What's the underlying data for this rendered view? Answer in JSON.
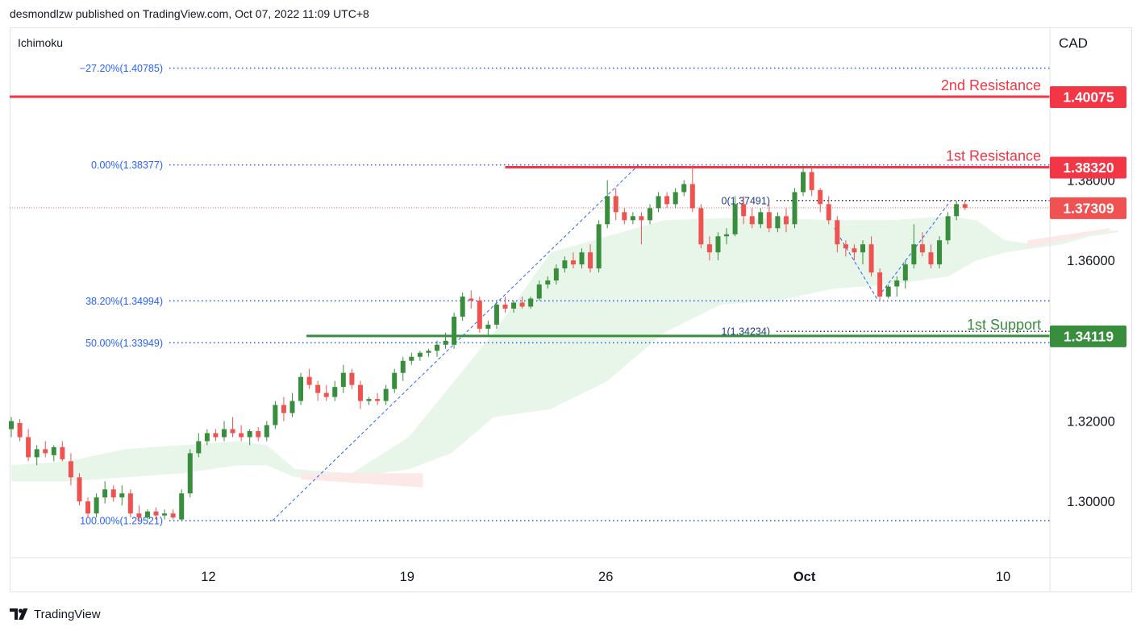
{
  "header": {
    "published": "desmondlzw published on TradingView.com, Oct 07, 2022 11:09 UTC+8"
  },
  "footer": {
    "brand": "TradingView"
  },
  "colors": {
    "up": "#388e3c",
    "down": "#ef5350",
    "resistance": "#f23645",
    "support": "#388e3c",
    "fib": "#2962ff",
    "cloud_up": "#e8f5e9",
    "cloud_down": "#fde8e8"
  },
  "icons": {
    "logo": "tradingview-logo-icon"
  },
  "chart_data": {
    "type": "candlestick",
    "indicator": "Ichimoku",
    "currency": "CAD",
    "ylim": [
      1.286,
      1.418
    ],
    "x_tick_labels": [
      {
        "label": "12",
        "day": 12
      },
      {
        "label": "19",
        "day": 19
      },
      {
        "label": "26",
        "day": 26
      },
      {
        "label": "Oct",
        "day": 33
      },
      {
        "label": "10",
        "day": 40
      }
    ],
    "y_tick_labels": [
      {
        "label": "1.30000",
        "value": 1.3
      },
      {
        "label": "1.32000",
        "value": 1.32
      },
      {
        "label": "1.36000",
        "value": 1.36
      },
      {
        "label": "1.38000",
        "value": 1.38
      }
    ],
    "price_badges": [
      {
        "label": "1.40075",
        "value": 1.40075,
        "kind": "resistance"
      },
      {
        "label": "1.38320",
        "value": 1.3832,
        "kind": "resistance"
      },
      {
        "label": "1.37309",
        "value": 1.37309,
        "kind": "last"
      },
      {
        "label": "1.34119",
        "value": 1.34119,
        "kind": "support"
      }
    ],
    "levels": [
      {
        "name": "2nd Resistance",
        "value": 1.40075,
        "kind": "resistance",
        "day_start": 5.0
      },
      {
        "name": "1st Resistance",
        "value": 1.3832,
        "kind": "resistance",
        "day_start": 22.4
      },
      {
        "name": "1st Support",
        "value": 1.34119,
        "kind": "support",
        "day_start": 15.4
      }
    ],
    "fib_levels": [
      {
        "label": "−27.20%(1.40785)",
        "value": 1.40785
      },
      {
        "label": "0.00%(1.38377)",
        "value": 1.38377
      },
      {
        "label": "38.20%(1.34994)",
        "value": 1.34994
      },
      {
        "label": "50.00%(1.33949)",
        "value": 1.33949
      },
      {
        "label": "100.00%(1.29521)",
        "value": 1.29521
      }
    ],
    "fib_trend": [
      {
        "day": 14.2,
        "value": 1.29521
      },
      {
        "day": 27.1,
        "value": 1.38377
      }
    ],
    "fib_ext_levels": [
      {
        "label": "0(1.37491)",
        "value": 1.37491
      },
      {
        "label": "1(1.34234)",
        "value": 1.34234
      }
    ],
    "fib_ext_trend": [
      {
        "day": 34.0,
        "value": 1.368
      },
      {
        "day": 35.5,
        "value": 1.3505
      },
      {
        "day": 38.1,
        "value": 1.37491
      }
    ],
    "last_price": 1.37309,
    "candles": [
      {
        "day": 5.0,
        "o": 1.318,
        "h": 1.321,
        "l": 1.316,
        "c": 1.32
      },
      {
        "day": 5.3,
        "o": 1.3195,
        "h": 1.3205,
        "l": 1.315,
        "c": 1.316
      },
      {
        "day": 5.6,
        "o": 1.316,
        "h": 1.318,
        "l": 1.31,
        "c": 1.311
      },
      {
        "day": 5.9,
        "o": 1.311,
        "h": 1.314,
        "l": 1.309,
        "c": 1.313
      },
      {
        "day": 6.2,
        "o": 1.313,
        "h": 1.315,
        "l": 1.311,
        "c": 1.312
      },
      {
        "day": 6.5,
        "o": 1.3115,
        "h": 1.314,
        "l": 1.31,
        "c": 1.3135
      },
      {
        "day": 6.8,
        "o": 1.3135,
        "h": 1.315,
        "l": 1.31,
        "c": 1.3105
      },
      {
        "day": 7.1,
        "o": 1.31,
        "h": 1.312,
        "l": 1.304,
        "c": 1.306
      },
      {
        "day": 7.4,
        "o": 1.306,
        "h": 1.307,
        "l": 1.299,
        "c": 1.3
      },
      {
        "day": 7.7,
        "o": 1.3,
        "h": 1.301,
        "l": 1.296,
        "c": 1.297
      },
      {
        "day": 8.0,
        "o": 1.297,
        "h": 1.302,
        "l": 1.296,
        "c": 1.301
      },
      {
        "day": 8.3,
        "o": 1.301,
        "h": 1.305,
        "l": 1.2995,
        "c": 1.303
      },
      {
        "day": 8.6,
        "o": 1.303,
        "h": 1.304,
        "l": 1.3,
        "c": 1.301
      },
      {
        "day": 8.9,
        "o": 1.301,
        "h": 1.304,
        "l": 1.299,
        "c": 1.302
      },
      {
        "day": 9.2,
        "o": 1.302,
        "h": 1.303,
        "l": 1.296,
        "c": 1.297
      },
      {
        "day": 9.5,
        "o": 1.297,
        "h": 1.299,
        "l": 1.295,
        "c": 1.296
      },
      {
        "day": 9.8,
        "o": 1.296,
        "h": 1.298,
        "l": 1.2955,
        "c": 1.2975
      },
      {
        "day": 10.1,
        "o": 1.2975,
        "h": 1.2985,
        "l": 1.2955,
        "c": 1.2965
      },
      {
        "day": 10.4,
        "o": 1.2965,
        "h": 1.298,
        "l": 1.2955,
        "c": 1.297
      },
      {
        "day": 10.7,
        "o": 1.297,
        "h": 1.298,
        "l": 1.2955,
        "c": 1.296
      },
      {
        "day": 11.0,
        "o": 1.2955,
        "h": 1.303,
        "l": 1.2952,
        "c": 1.302
      },
      {
        "day": 11.3,
        "o": 1.302,
        "h": 1.313,
        "l": 1.301,
        "c": 1.312
      },
      {
        "day": 11.6,
        "o": 1.312,
        "h": 1.317,
        "l": 1.311,
        "c": 1.315
      },
      {
        "day": 11.9,
        "o": 1.315,
        "h": 1.318,
        "l": 1.314,
        "c": 1.317
      },
      {
        "day": 12.2,
        "o": 1.317,
        "h": 1.318,
        "l": 1.315,
        "c": 1.316
      },
      {
        "day": 12.5,
        "o": 1.316,
        "h": 1.32,
        "l": 1.315,
        "c": 1.318
      },
      {
        "day": 12.8,
        "o": 1.318,
        "h": 1.321,
        "l": 1.316,
        "c": 1.317
      },
      {
        "day": 13.1,
        "o": 1.317,
        "h": 1.319,
        "l": 1.315,
        "c": 1.316
      },
      {
        "day": 13.4,
        "o": 1.316,
        "h": 1.318,
        "l": 1.314,
        "c": 1.3175
      },
      {
        "day": 13.7,
        "o": 1.3175,
        "h": 1.3185,
        "l": 1.315,
        "c": 1.316
      },
      {
        "day": 14.0,
        "o": 1.316,
        "h": 1.32,
        "l": 1.315,
        "c": 1.319
      },
      {
        "day": 14.3,
        "o": 1.319,
        "h": 1.325,
        "l": 1.318,
        "c": 1.324
      },
      {
        "day": 14.6,
        "o": 1.324,
        "h": 1.326,
        "l": 1.32,
        "c": 1.322
      },
      {
        "day": 14.9,
        "o": 1.322,
        "h": 1.327,
        "l": 1.321,
        "c": 1.325
      },
      {
        "day": 15.2,
        "o": 1.325,
        "h": 1.332,
        "l": 1.324,
        "c": 1.331
      },
      {
        "day": 15.5,
        "o": 1.331,
        "h": 1.333,
        "l": 1.328,
        "c": 1.329
      },
      {
        "day": 15.8,
        "o": 1.329,
        "h": 1.33,
        "l": 1.325,
        "c": 1.327
      },
      {
        "day": 16.1,
        "o": 1.327,
        "h": 1.329,
        "l": 1.325,
        "c": 1.326
      },
      {
        "day": 16.4,
        "o": 1.326,
        "h": 1.33,
        "l": 1.325,
        "c": 1.3285
      },
      {
        "day": 16.7,
        "o": 1.3285,
        "h": 1.334,
        "l": 1.327,
        "c": 1.332
      },
      {
        "day": 17.0,
        "o": 1.332,
        "h": 1.333,
        "l": 1.328,
        "c": 1.329
      },
      {
        "day": 17.3,
        "o": 1.329,
        "h": 1.33,
        "l": 1.323,
        "c": 1.325
      },
      {
        "day": 17.6,
        "o": 1.325,
        "h": 1.326,
        "l": 1.324,
        "c": 1.3255
      },
      {
        "day": 17.9,
        "o": 1.3255,
        "h": 1.327,
        "l": 1.324,
        "c": 1.325
      },
      {
        "day": 18.2,
        "o": 1.325,
        "h": 1.329,
        "l": 1.324,
        "c": 1.328
      },
      {
        "day": 18.5,
        "o": 1.328,
        "h": 1.333,
        "l": 1.327,
        "c": 1.332
      },
      {
        "day": 18.8,
        "o": 1.332,
        "h": 1.336,
        "l": 1.33,
        "c": 1.335
      },
      {
        "day": 19.1,
        "o": 1.335,
        "h": 1.337,
        "l": 1.334,
        "c": 1.336
      },
      {
        "day": 19.4,
        "o": 1.336,
        "h": 1.3375,
        "l": 1.335,
        "c": 1.337
      },
      {
        "day": 19.7,
        "o": 1.337,
        "h": 1.338,
        "l": 1.336,
        "c": 1.3375
      },
      {
        "day": 20.0,
        "o": 1.3375,
        "h": 1.34,
        "l": 1.336,
        "c": 1.339
      },
      {
        "day": 20.3,
        "o": 1.339,
        "h": 1.342,
        "l": 1.338,
        "c": 1.34
      },
      {
        "day": 20.6,
        "o": 1.339,
        "h": 1.347,
        "l": 1.338,
        "c": 1.346
      },
      {
        "day": 20.9,
        "o": 1.346,
        "h": 1.352,
        "l": 1.345,
        "c": 1.351
      },
      {
        "day": 21.2,
        "o": 1.3505,
        "h": 1.3525,
        "l": 1.348,
        "c": 1.35
      },
      {
        "day": 21.5,
        "o": 1.35,
        "h": 1.351,
        "l": 1.342,
        "c": 1.343
      },
      {
        "day": 21.8,
        "o": 1.343,
        "h": 1.345,
        "l": 1.341,
        "c": 1.344
      },
      {
        "day": 22.1,
        "o": 1.344,
        "h": 1.35,
        "l": 1.343,
        "c": 1.349
      },
      {
        "day": 22.4,
        "o": 1.349,
        "h": 1.351,
        "l": 1.347,
        "c": 1.348
      },
      {
        "day": 22.7,
        "o": 1.348,
        "h": 1.35,
        "l": 1.347,
        "c": 1.3495
      },
      {
        "day": 23.0,
        "o": 1.3495,
        "h": 1.351,
        "l": 1.348,
        "c": 1.3485
      },
      {
        "day": 23.3,
        "o": 1.3485,
        "h": 1.351,
        "l": 1.348,
        "c": 1.3505
      },
      {
        "day": 23.6,
        "o": 1.3505,
        "h": 1.355,
        "l": 1.35,
        "c": 1.354
      },
      {
        "day": 23.9,
        "o": 1.354,
        "h": 1.356,
        "l": 1.353,
        "c": 1.355
      },
      {
        "day": 24.2,
        "o": 1.355,
        "h": 1.359,
        "l": 1.354,
        "c": 1.358
      },
      {
        "day": 24.5,
        "o": 1.358,
        "h": 1.361,
        "l": 1.357,
        "c": 1.36
      },
      {
        "day": 24.8,
        "o": 1.36,
        "h": 1.362,
        "l": 1.358,
        "c": 1.359
      },
      {
        "day": 25.1,
        "o": 1.359,
        "h": 1.363,
        "l": 1.358,
        "c": 1.362
      },
      {
        "day": 25.4,
        "o": 1.362,
        "h": 1.364,
        "l": 1.357,
        "c": 1.358
      },
      {
        "day": 25.7,
        "o": 1.358,
        "h": 1.37,
        "l": 1.357,
        "c": 1.369
      },
      {
        "day": 26.0,
        "o": 1.369,
        "h": 1.38,
        "l": 1.368,
        "c": 1.376
      },
      {
        "day": 26.3,
        "o": 1.376,
        "h": 1.378,
        "l": 1.37,
        "c": 1.372
      },
      {
        "day": 26.6,
        "o": 1.372,
        "h": 1.373,
        "l": 1.369,
        "c": 1.37
      },
      {
        "day": 26.9,
        "o": 1.37,
        "h": 1.372,
        "l": 1.369,
        "c": 1.371
      },
      {
        "day": 27.2,
        "o": 1.371,
        "h": 1.372,
        "l": 1.364,
        "c": 1.37
      },
      {
        "day": 27.5,
        "o": 1.37,
        "h": 1.374,
        "l": 1.369,
        "c": 1.373
      },
      {
        "day": 27.8,
        "o": 1.373,
        "h": 1.377,
        "l": 1.372,
        "c": 1.376
      },
      {
        "day": 28.1,
        "o": 1.376,
        "h": 1.377,
        "l": 1.373,
        "c": 1.374
      },
      {
        "day": 28.4,
        "o": 1.374,
        "h": 1.378,
        "l": 1.373,
        "c": 1.377
      },
      {
        "day": 28.7,
        "o": 1.377,
        "h": 1.38,
        "l": 1.376,
        "c": 1.379
      },
      {
        "day": 29.0,
        "o": 1.379,
        "h": 1.3838,
        "l": 1.372,
        "c": 1.373
      },
      {
        "day": 29.3,
        "o": 1.373,
        "h": 1.374,
        "l": 1.363,
        "c": 1.364
      },
      {
        "day": 29.6,
        "o": 1.364,
        "h": 1.366,
        "l": 1.36,
        "c": 1.362
      },
      {
        "day": 29.9,
        "o": 1.362,
        "h": 1.367,
        "l": 1.36,
        "c": 1.366
      },
      {
        "day": 30.2,
        "o": 1.366,
        "h": 1.368,
        "l": 1.364,
        "c": 1.3665
      },
      {
        "day": 30.5,
        "o": 1.3665,
        "h": 1.376,
        "l": 1.366,
        "c": 1.374
      },
      {
        "day": 30.8,
        "o": 1.374,
        "h": 1.376,
        "l": 1.369,
        "c": 1.371
      },
      {
        "day": 31.1,
        "o": 1.371,
        "h": 1.373,
        "l": 1.368,
        "c": 1.369
      },
      {
        "day": 31.4,
        "o": 1.369,
        "h": 1.373,
        "l": 1.368,
        "c": 1.372
      },
      {
        "day": 31.7,
        "o": 1.372,
        "h": 1.374,
        "l": 1.367,
        "c": 1.368
      },
      {
        "day": 32.0,
        "o": 1.368,
        "h": 1.372,
        "l": 1.367,
        "c": 1.371
      },
      {
        "day": 32.3,
        "o": 1.371,
        "h": 1.373,
        "l": 1.367,
        "c": 1.369
      },
      {
        "day": 32.6,
        "o": 1.369,
        "h": 1.378,
        "l": 1.368,
        "c": 1.377
      },
      {
        "day": 32.9,
        "o": 1.377,
        "h": 1.3835,
        "l": 1.376,
        "c": 1.382
      },
      {
        "day": 33.2,
        "o": 1.382,
        "h": 1.3835,
        "l": 1.376,
        "c": 1.3775
      },
      {
        "day": 33.5,
        "o": 1.3775,
        "h": 1.378,
        "l": 1.372,
        "c": 1.374
      },
      {
        "day": 33.8,
        "o": 1.374,
        "h": 1.376,
        "l": 1.369,
        "c": 1.37
      },
      {
        "day": 34.1,
        "o": 1.37,
        "h": 1.371,
        "l": 1.362,
        "c": 1.364
      },
      {
        "day": 34.4,
        "o": 1.364,
        "h": 1.365,
        "l": 1.361,
        "c": 1.363
      },
      {
        "day": 34.7,
        "o": 1.363,
        "h": 1.364,
        "l": 1.36,
        "c": 1.362
      },
      {
        "day": 35.0,
        "o": 1.362,
        "h": 1.365,
        "l": 1.359,
        "c": 1.364
      },
      {
        "day": 35.3,
        "o": 1.364,
        "h": 1.366,
        "l": 1.356,
        "c": 1.357
      },
      {
        "day": 35.6,
        "o": 1.357,
        "h": 1.358,
        "l": 1.35,
        "c": 1.351
      },
      {
        "day": 35.9,
        "o": 1.351,
        "h": 1.354,
        "l": 1.3505,
        "c": 1.3535
      },
      {
        "day": 36.2,
        "o": 1.3535,
        "h": 1.356,
        "l": 1.351,
        "c": 1.355
      },
      {
        "day": 36.5,
        "o": 1.355,
        "h": 1.36,
        "l": 1.353,
        "c": 1.359
      },
      {
        "day": 36.8,
        "o": 1.359,
        "h": 1.369,
        "l": 1.358,
        "c": 1.364
      },
      {
        "day": 37.1,
        "o": 1.364,
        "h": 1.367,
        "l": 1.361,
        "c": 1.362
      },
      {
        "day": 37.4,
        "o": 1.362,
        "h": 1.364,
        "l": 1.358,
        "c": 1.359
      },
      {
        "day": 37.7,
        "o": 1.359,
        "h": 1.366,
        "l": 1.358,
        "c": 1.365
      },
      {
        "day": 38.0,
        "o": 1.365,
        "h": 1.372,
        "l": 1.364,
        "c": 1.371
      },
      {
        "day": 38.3,
        "o": 1.371,
        "h": 1.3749,
        "l": 1.37,
        "c": 1.374
      },
      {
        "day": 38.6,
        "o": 1.374,
        "h": 1.3749,
        "l": 1.3725,
        "c": 1.3731
      }
    ],
    "cloud": {
      "span_a": [
        {
          "day": 5.0,
          "value": 1.309
        },
        {
          "day": 7.0,
          "value": 1.31
        },
        {
          "day": 9.0,
          "value": 1.313
        },
        {
          "day": 11.0,
          "value": 1.314
        },
        {
          "day": 13.0,
          "value": 1.315
        },
        {
          "day": 14.0,
          "value": 1.314
        },
        {
          "day": 15.0,
          "value": 1.308
        },
        {
          "day": 17.0,
          "value": 1.307
        },
        {
          "day": 19.0,
          "value": 1.316
        },
        {
          "day": 20.5,
          "value": 1.329
        },
        {
          "day": 22.0,
          "value": 1.342
        },
        {
          "day": 24.0,
          "value": 1.362
        },
        {
          "day": 26.0,
          "value": 1.366
        },
        {
          "day": 28.0,
          "value": 1.37
        },
        {
          "day": 30.0,
          "value": 1.3705
        },
        {
          "day": 32.0,
          "value": 1.3705
        },
        {
          "day": 34.0,
          "value": 1.37
        },
        {
          "day": 36.0,
          "value": 1.37
        },
        {
          "day": 38.0,
          "value": 1.371
        },
        {
          "day": 39.0,
          "value": 1.37
        },
        {
          "day": 40.0,
          "value": 1.365
        },
        {
          "day": 41.0,
          "value": 1.364
        },
        {
          "day": 42.0,
          "value": 1.365
        },
        {
          "day": 43.0,
          "value": 1.367
        },
        {
          "day": 44.0,
          "value": 1.3675
        }
      ],
      "span_b": [
        {
          "day": 5.0,
          "value": 1.305
        },
        {
          "day": 7.0,
          "value": 1.305
        },
        {
          "day": 9.0,
          "value": 1.306
        },
        {
          "day": 11.0,
          "value": 1.307
        },
        {
          "day": 13.0,
          "value": 1.309
        },
        {
          "day": 14.0,
          "value": 1.309
        },
        {
          "day": 15.0,
          "value": 1.306
        },
        {
          "day": 17.0,
          "value": 1.306
        },
        {
          "day": 19.0,
          "value": 1.308
        },
        {
          "day": 20.5,
          "value": 1.312
        },
        {
          "day": 22.0,
          "value": 1.321
        },
        {
          "day": 24.0,
          "value": 1.323
        },
        {
          "day": 26.0,
          "value": 1.33
        },
        {
          "day": 28.0,
          "value": 1.342
        },
        {
          "day": 30.0,
          "value": 1.349
        },
        {
          "day": 32.0,
          "value": 1.35
        },
        {
          "day": 34.0,
          "value": 1.353
        },
        {
          "day": 36.0,
          "value": 1.354
        },
        {
          "day": 38.0,
          "value": 1.356
        },
        {
          "day": 39.0,
          "value": 1.36
        },
        {
          "day": 40.0,
          "value": 1.362
        },
        {
          "day": 41.0,
          "value": 1.363
        },
        {
          "day": 42.0,
          "value": 1.364
        },
        {
          "day": 43.0,
          "value": 1.366
        },
        {
          "day": 44.0,
          "value": 1.367
        }
      ]
    }
  }
}
